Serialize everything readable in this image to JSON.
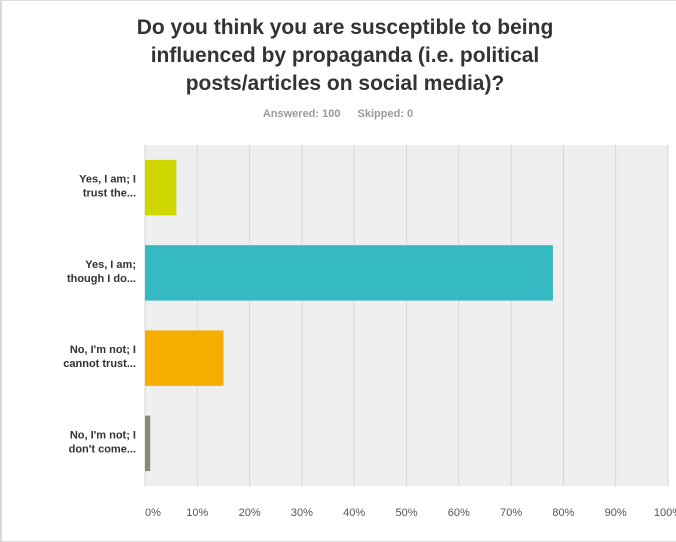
{
  "chart_data": {
    "type": "bar",
    "orientation": "horizontal",
    "title": "Do you think you are susceptible to being influenced by propaganda (i.e. political posts/articles on social media)?",
    "answered": "Answered: 100",
    "skipped": "Skipped: 0",
    "categories": [
      [
        "Yes, I am; I",
        "trust the..."
      ],
      [
        "Yes, I am;",
        "though I do..."
      ],
      [
        "No, I'm not; I",
        "cannot trust..."
      ],
      [
        "No, I'm not; I",
        "don't come..."
      ]
    ],
    "values": [
      6,
      78,
      15,
      1
    ],
    "colors": [
      "#cfd600",
      "#35b9c3",
      "#f5ad00",
      "#858a73"
    ],
    "xlim": [
      0,
      100
    ],
    "ticks": [
      0,
      10,
      20,
      30,
      40,
      50,
      60,
      70,
      80,
      90,
      100
    ],
    "tick_labels": [
      "0%",
      "10%",
      "20%",
      "30%",
      "40%",
      "50%",
      "60%",
      "70%",
      "80%",
      "90%",
      "100%"
    ],
    "grid": true
  }
}
